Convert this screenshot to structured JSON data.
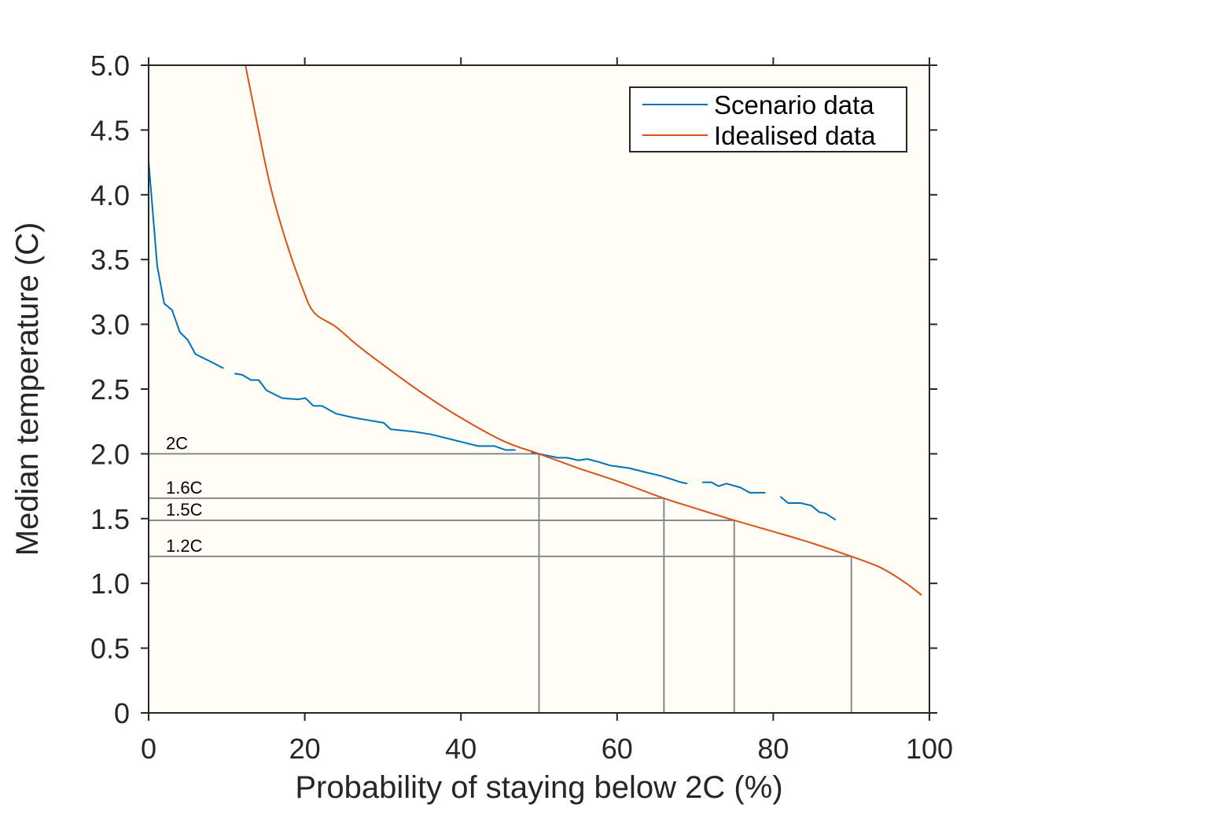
{
  "chart_data": {
    "type": "line",
    "title": "",
    "xlabel": "Probability of staying below 2C (%)",
    "ylabel": "Median temperature (C)",
    "xlim": [
      0,
      100
    ],
    "ylim": [
      0,
      5
    ],
    "xticks": [
      0,
      20,
      40,
      60,
      80,
      100
    ],
    "xtick_labels": [
      "0",
      "20",
      "40",
      "60",
      "80",
      "100"
    ],
    "yticks": [
      0,
      0.5,
      1.0,
      1.5,
      2.0,
      2.5,
      3.0,
      3.5,
      4.0,
      4.5,
      5.0
    ],
    "ytick_labels": [
      "0",
      "0.5",
      "1.0",
      "1.5",
      "2.0",
      "2.5",
      "3.0",
      "3.5",
      "4.0",
      "4.5",
      "5.0"
    ],
    "grid": false,
    "background": "#fffef6",
    "legend": {
      "position": "top-right",
      "entries": [
        "Scenario data",
        "Idealised data"
      ]
    },
    "series": [
      {
        "name": "Scenario data",
        "color": "#0072bd",
        "segments": [
          [
            [
              0,
              4.26
            ],
            [
              1.1,
              3.45
            ],
            [
              2,
              3.16
            ],
            [
              3,
              3.11
            ],
            [
              4,
              2.94
            ],
            [
              5,
              2.88
            ],
            [
              6,
              2.77
            ],
            [
              8,
              2.71
            ],
            [
              9.6,
              2.66
            ]
          ],
          [
            [
              11,
              2.62
            ],
            [
              12,
              2.61
            ],
            [
              13.1,
              2.57
            ],
            [
              14.1,
              2.57
            ],
            [
              15.1,
              2.49
            ],
            [
              16.1,
              2.46
            ],
            [
              17.1,
              2.43
            ],
            [
              19.1,
              2.42
            ],
            [
              20.1,
              2.43
            ],
            [
              21.1,
              2.37
            ],
            [
              22.2,
              2.37
            ],
            [
              24,
              2.31
            ],
            [
              26.2,
              2.28
            ],
            [
              28.1,
              2.26
            ],
            [
              30.1,
              2.24
            ],
            [
              31,
              2.19
            ],
            [
              34.1,
              2.17
            ],
            [
              36.2,
              2.15
            ],
            [
              38.2,
              2.12
            ],
            [
              40.2,
              2.09
            ],
            [
              42.2,
              2.06
            ],
            [
              44.3,
              2.06
            ],
            [
              45.7,
              2.03
            ],
            [
              47,
              2.03
            ]
          ],
          [
            [
              49.0,
              2.01
            ],
            [
              50,
              2.0
            ],
            [
              52.4,
              1.97
            ],
            [
              53.6,
              1.97
            ],
            [
              55,
              1.95
            ],
            [
              56.2,
              1.96
            ],
            [
              57.5,
              1.94
            ],
            [
              59.1,
              1.91
            ],
            [
              61.5,
              1.89
            ],
            [
              63.5,
              1.86
            ],
            [
              65.6,
              1.83
            ],
            [
              67.2,
              1.8
            ],
            [
              68.2,
              1.78
            ],
            [
              69,
              1.77
            ]
          ],
          [
            [
              70.9,
              1.78
            ],
            [
              72.1,
              1.78
            ],
            [
              73,
              1.75
            ],
            [
              74,
              1.77
            ],
            [
              75.8,
              1.74
            ],
            [
              77,
              1.7
            ],
            [
              79,
              1.7
            ]
          ],
          [
            [
              80.9,
              1.67
            ],
            [
              81.9,
              1.62
            ],
            [
              83.5,
              1.62
            ],
            [
              84.9,
              1.6
            ],
            [
              85.9,
              1.55
            ],
            [
              86.7,
              1.54
            ],
            [
              88,
              1.49
            ]
          ]
        ]
      },
      {
        "name": "Idealised data",
        "color": "#d95319",
        "points": [
          [
            12.4,
            5.0
          ],
          [
            13.8,
            4.58
          ],
          [
            15.5,
            4.09
          ],
          [
            17.4,
            3.68
          ],
          [
            19.7,
            3.28
          ],
          [
            21.2,
            3.09
          ],
          [
            24,
            2.98
          ],
          [
            26.5,
            2.85
          ],
          [
            29.3,
            2.72
          ],
          [
            34.3,
            2.5
          ],
          [
            39.4,
            2.3
          ],
          [
            45.4,
            2.1
          ],
          [
            50,
            2.0
          ],
          [
            55,
            1.89
          ],
          [
            60,
            1.79
          ],
          [
            66,
            1.657
          ],
          [
            70,
            1.58
          ],
          [
            75,
            1.487
          ],
          [
            80,
            1.4
          ],
          [
            85,
            1.31
          ],
          [
            90,
            1.208
          ],
          [
            93.8,
            1.12
          ],
          [
            96.8,
            1.01
          ],
          [
            99,
            0.91
          ]
        ]
      }
    ],
    "reference_lines": [
      {
        "label": "2C",
        "y": 2.0,
        "x": 50
      },
      {
        "label": "1.6C",
        "y": 1.657,
        "x": 66
      },
      {
        "label": "1.5C",
        "y": 1.487,
        "x": 75
      },
      {
        "label": "1.2C",
        "y": 1.208,
        "x": 90
      }
    ],
    "reference_color": "#888888"
  }
}
